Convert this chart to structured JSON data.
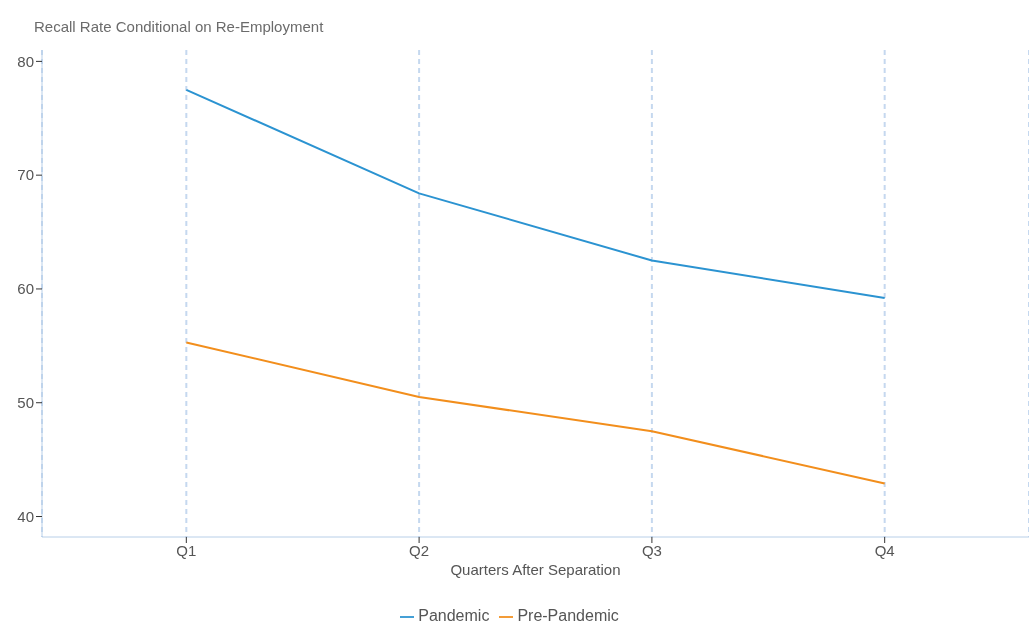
{
  "chart_data": {
    "type": "line",
    "title": "Recall Rate Conditional on Re-Employment",
    "xlabel": "Quarters After Separation",
    "categories": [
      "Q1",
      "Q2",
      "Q3",
      "Q4"
    ],
    "series": [
      {
        "name": "Pandemic",
        "color": "#2b93d1",
        "values": [
          77.5,
          68.4,
          62.5,
          59.2
        ]
      },
      {
        "name": "Pre-Pandemic",
        "color": "#f28e1c",
        "values": [
          55.3,
          50.5,
          47.5,
          42.9
        ]
      }
    ],
    "ylim": [
      38.2,
      81
    ],
    "yticks": [
      40,
      50,
      60,
      70,
      80
    ],
    "grid": "x",
    "legend": "bottom",
    "marker": "none",
    "line_style": "solid"
  }
}
